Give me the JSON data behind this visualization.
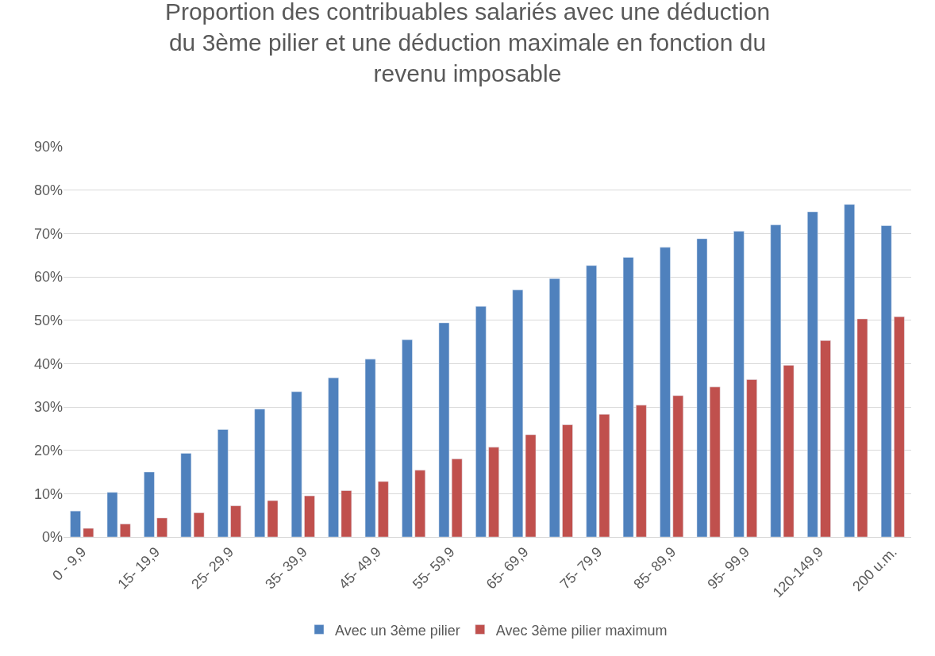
{
  "chart_data": {
    "type": "bar",
    "title": "Proportion des contribuables salariés avec une déduction du 3ème pilier et une déduction maximale en fonction du revenu imposable",
    "categories": [
      "0 - 9,9",
      null,
      "15- 19,9",
      null,
      "25- 29,9",
      null,
      "35- 39,9",
      null,
      "45- 49,9",
      null,
      "55- 59,9",
      null,
      "65- 69,9",
      null,
      "75- 79,9",
      null,
      "85- 89,9",
      null,
      "95- 99,9",
      null,
      "120-149,9",
      null,
      "200 u.m."
    ],
    "series": [
      {
        "name": "Avec un 3ème pilier",
        "color": "#4f81bd",
        "values": [
          6,
          10.3,
          15,
          19.3,
          24.8,
          29.5,
          33.5,
          36.7,
          41,
          45.5,
          49.4,
          53.2,
          57,
          59.6,
          62.6,
          64.5,
          66.8,
          68.8,
          70.5,
          72,
          75,
          76.7,
          71.8
        ]
      },
      {
        "name": "Avec 3ème pilier maximum",
        "color": "#c0504d",
        "values": [
          2,
          3,
          4.4,
          5.6,
          7.2,
          8.4,
          9.5,
          10.7,
          12.8,
          15.4,
          18,
          20.7,
          23.6,
          25.9,
          28.3,
          30.4,
          32.6,
          34.6,
          36.3,
          39.6,
          45.3,
          50.3,
          50.8
        ]
      }
    ],
    "ylim": [
      0,
      90
    ],
    "yticks": [
      {
        "value": 0,
        "label": "0%"
      },
      {
        "value": 10,
        "label": "10%"
      },
      {
        "value": 20,
        "label": "20%"
      },
      {
        "value": 30,
        "label": "30%"
      },
      {
        "value": 40,
        "label": "40%"
      },
      {
        "value": 50,
        "label": "50%"
      },
      {
        "value": 60,
        "label": "60%"
      },
      {
        "value": 70,
        "label": "70%"
      },
      {
        "value": 80,
        "label": "80%"
      },
      {
        "value": 90,
        "label": "90%"
      }
    ],
    "grid": "y",
    "legend": "bottom"
  }
}
